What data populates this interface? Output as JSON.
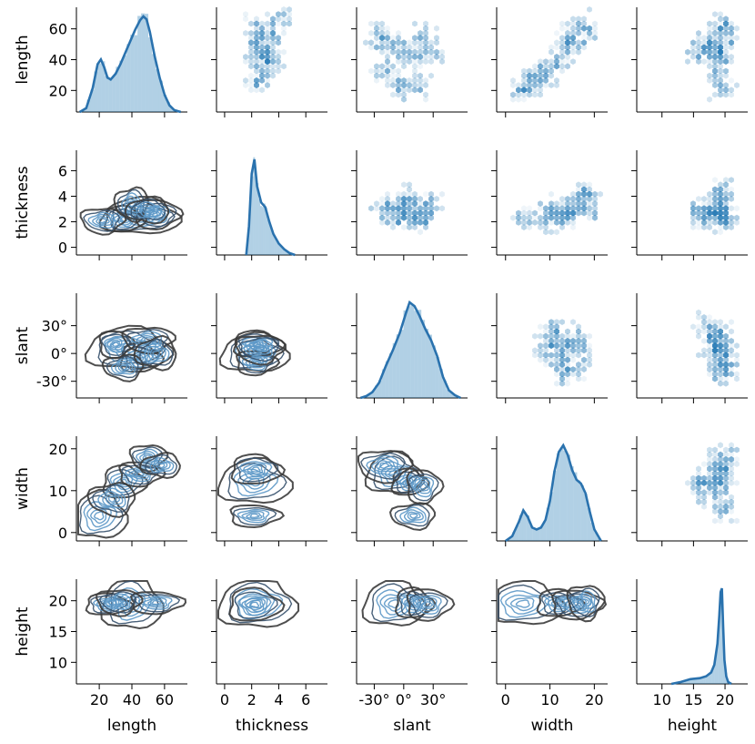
{
  "chart_data": {
    "type": "pairplot",
    "variables": [
      "length",
      "thickness",
      "slant",
      "width",
      "height"
    ],
    "diagonal": "histogram + kde",
    "upper": "hexbin",
    "lower": "kde contours",
    "colors": {
      "fill": "#1f77b4",
      "kde_line": "#2a72ae",
      "contour_dark": "#3b3b3b",
      "axis": "#000000"
    },
    "axes": {
      "length": {
        "range": [
          6,
          74
        ],
        "ticks": [
          20,
          40,
          60
        ],
        "tick_labels": [
          "20",
          "40",
          "60"
        ]
      },
      "thickness": {
        "range": [
          -0.6,
          7.6
        ],
        "ticks": [
          0,
          2,
          4,
          6
        ],
        "tick_labels": [
          "0",
          "2",
          "4",
          "6"
        ]
      },
      "slant": {
        "range": [
          -48,
          65
        ],
        "ticks": [
          -30,
          0,
          30
        ],
        "tick_labels": [
          "-30°",
          "0°",
          "30°"
        ]
      },
      "width": {
        "range": [
          -2,
          23
        ],
        "ticks": [
          0,
          10,
          20
        ],
        "tick_labels": [
          "0",
          "10",
          "20"
        ]
      },
      "height": {
        "range": [
          6,
          23.6
        ],
        "ticks": [
          10,
          15,
          20
        ],
        "tick_labels": [
          "10",
          "15",
          "20"
        ]
      }
    },
    "y_axes": {
      "length": {
        "range": [
          6,
          74
        ],
        "ticks": [
          20,
          40,
          60
        ],
        "tick_labels": [
          "20",
          "40",
          "60"
        ]
      },
      "thickness": {
        "range": [
          -0.6,
          7.6
        ],
        "ticks": [
          0,
          2,
          4,
          6
        ],
        "tick_labels": [
          "0",
          "2",
          "4",
          "6"
        ]
      },
      "slant": {
        "range": [
          -48,
          65
        ],
        "ticks": [
          -30,
          0,
          30
        ],
        "tick_labels": [
          "-30°",
          "0°",
          "30°"
        ]
      },
      "width": {
        "range": [
          -2,
          23
        ],
        "ticks": [
          0,
          10,
          20
        ],
        "tick_labels": [
          "0",
          "10",
          "20"
        ]
      },
      "height": {
        "range": [
          6.5,
          23.5
        ],
        "ticks": [
          10,
          15,
          20
        ],
        "tick_labels": [
          "10",
          "15",
          "20"
        ]
      }
    },
    "diag": {
      "length": {
        "kde_x": [
          8,
          12,
          16,
          19,
          21,
          23,
          25,
          27,
          30,
          33,
          36,
          39,
          42,
          45,
          47,
          49,
          51,
          54,
          57,
          60,
          63,
          66,
          70
        ],
        "kde_d": [
          0.0,
          0.04,
          0.25,
          0.5,
          0.55,
          0.47,
          0.36,
          0.34,
          0.4,
          0.5,
          0.62,
          0.74,
          0.86,
          0.96,
          1.0,
          0.97,
          0.84,
          0.58,
          0.36,
          0.18,
          0.07,
          0.02,
          0.0
        ]
      },
      "thickness": {
        "kde_x": [
          1.6,
          1.8,
          2.0,
          2.2,
          2.4,
          2.7,
          3.0,
          3.3,
          3.6,
          4.0,
          4.4,
          4.8,
          5.2
        ],
        "kde_d": [
          0.0,
          0.3,
          0.85,
          1.0,
          0.72,
          0.55,
          0.5,
          0.35,
          0.22,
          0.12,
          0.06,
          0.02,
          0.0
        ]
      },
      "slant": {
        "kde_x": [
          -44,
          -38,
          -32,
          -25,
          -18,
          -11,
          -4,
          2,
          6,
          11,
          16,
          22,
          28,
          34,
          40,
          46,
          52,
          58
        ],
        "kde_d": [
          0.0,
          0.02,
          0.06,
          0.16,
          0.34,
          0.5,
          0.68,
          0.88,
          1.0,
          0.96,
          0.86,
          0.72,
          0.6,
          0.44,
          0.22,
          0.08,
          0.03,
          0.0
        ]
      },
      "width": {
        "kde_x": [
          0,
          1.5,
          3,
          4,
          5,
          6,
          7,
          8,
          9,
          10,
          11,
          12,
          13,
          14,
          15,
          16,
          17,
          18,
          19,
          20,
          21.5
        ],
        "kde_d": [
          0.0,
          0.05,
          0.2,
          0.32,
          0.25,
          0.14,
          0.12,
          0.14,
          0.22,
          0.42,
          0.72,
          0.93,
          1.0,
          0.9,
          0.74,
          0.64,
          0.6,
          0.5,
          0.3,
          0.12,
          0.0
        ]
      },
      "height": {
        "kde_x": [
          11.5,
          13,
          14.5,
          16,
          17,
          17.8,
          18.3,
          18.8,
          19.1,
          19.3,
          19.5,
          19.7,
          19.9,
          20.2,
          20.5,
          21
        ],
        "kde_d": [
          0.0,
          0.02,
          0.05,
          0.06,
          0.08,
          0.12,
          0.2,
          0.42,
          0.72,
          0.96,
          1.0,
          0.6,
          0.25,
          0.08,
          0.02,
          0.0
        ]
      }
    },
    "hexbin_centers": {
      "thickness_vs_length": [
        [
          2.5,
          50
        ],
        [
          3,
          45
        ],
        [
          2.2,
          60
        ],
        [
          3.5,
          40
        ],
        [
          2.8,
          30
        ],
        [
          2.3,
          22
        ],
        [
          3.2,
          55
        ],
        [
          4,
          65
        ],
        [
          2.6,
          38
        ]
      ],
      "slant_vs_length": [
        [
          -10,
          50
        ],
        [
          0,
          45
        ],
        [
          10,
          40
        ],
        [
          20,
          55
        ],
        [
          -20,
          35
        ],
        [
          -5,
          22
        ],
        [
          15,
          25
        ],
        [
          30,
          45
        ],
        [
          -25,
          55
        ]
      ],
      "width_vs_length": [
        [
          4,
          20
        ],
        [
          8,
          30
        ],
        [
          12,
          40
        ],
        [
          15,
          48
        ],
        [
          18,
          58
        ],
        [
          14,
          52
        ],
        [
          10,
          35
        ],
        [
          6,
          25
        ],
        [
          17,
          62
        ]
      ],
      "height_vs_length": [
        [
          19.5,
          40
        ],
        [
          19.5,
          55
        ],
        [
          19,
          30
        ],
        [
          18,
          45
        ],
        [
          17,
          50
        ],
        [
          19.8,
          22
        ],
        [
          19.6,
          62
        ],
        [
          16,
          42
        ],
        [
          19.2,
          48
        ]
      ],
      "slant_vs_thickness": [
        [
          -10,
          2.2
        ],
        [
          0,
          2.5
        ],
        [
          10,
          3
        ],
        [
          20,
          2.4
        ],
        [
          -20,
          3.2
        ],
        [
          5,
          4
        ],
        [
          -5,
          2.8
        ],
        [
          25,
          3.5
        ],
        [
          15,
          2.2
        ]
      ],
      "width_vs_thickness": [
        [
          4,
          2.2
        ],
        [
          10,
          3
        ],
        [
          13,
          2.5
        ],
        [
          16,
          3.5
        ],
        [
          18,
          4
        ],
        [
          12,
          2.2
        ],
        [
          8,
          2.4
        ],
        [
          15,
          2.8
        ],
        [
          19,
          3
        ]
      ],
      "height_vs_thickness": [
        [
          19.5,
          2.3
        ],
        [
          19.5,
          3
        ],
        [
          19.2,
          3.8
        ],
        [
          18,
          2.6
        ],
        [
          17,
          2.4
        ],
        [
          19.8,
          2.2
        ],
        [
          19.4,
          4.5
        ],
        [
          16,
          2.8
        ],
        [
          19.6,
          2.6
        ]
      ],
      "width_vs_slant": [
        [
          12,
          -5
        ],
        [
          14,
          5
        ],
        [
          15,
          15
        ],
        [
          10,
          10
        ],
        [
          8,
          0
        ],
        [
          16,
          -15
        ],
        [
          13,
          -20
        ],
        [
          11,
          25
        ],
        [
          17,
          5
        ]
      ],
      "height_vs_slant": [
        [
          19.5,
          0
        ],
        [
          19.5,
          10
        ],
        [
          19.8,
          -10
        ],
        [
          19.2,
          20
        ],
        [
          18,
          15
        ],
        [
          17,
          30
        ],
        [
          19.6,
          -20
        ],
        [
          19,
          5
        ],
        [
          18.5,
          -5
        ]
      ],
      "height_vs_width": [
        [
          19.5,
          12
        ],
        [
          19.5,
          16
        ],
        [
          19,
          8
        ],
        [
          18,
          14
        ],
        [
          17,
          10
        ],
        [
          19.8,
          5
        ],
        [
          19.6,
          18
        ],
        [
          16,
          12
        ],
        [
          19.3,
          14
        ]
      ]
    },
    "kde_peaks": {
      "length_x_thickness": [
        [
          45,
          2.4
        ],
        [
          35,
          2.2
        ],
        [
          55,
          2.6
        ],
        [
          22,
          2.1
        ],
        [
          40,
          3.4
        ],
        [
          50,
          2.9
        ]
      ],
      "length_x_slant": [
        [
          38,
          5
        ],
        [
          45,
          -5
        ],
        [
          30,
          10
        ],
        [
          50,
          15
        ],
        [
          35,
          -15
        ],
        [
          55,
          0
        ]
      ],
      "length_x_width": [
        [
          20,
          4
        ],
        [
          35,
          12
        ],
        [
          45,
          14
        ],
        [
          50,
          18
        ],
        [
          28,
          8
        ],
        [
          58,
          16
        ]
      ],
      "length_x_height": [
        [
          40,
          19.5
        ],
        [
          25,
          19.4
        ],
        [
          55,
          19.7
        ],
        [
          32,
          19.8
        ]
      ],
      "thickness_x_slant": [
        [
          2.2,
          0
        ],
        [
          2.4,
          10
        ],
        [
          2.3,
          -10
        ],
        [
          2.6,
          5
        ]
      ],
      "thickness_x_width": [
        [
          2.2,
          12
        ],
        [
          2.3,
          15
        ],
        [
          2.2,
          4
        ]
      ],
      "thickness_x_height": [
        [
          2.4,
          19.5
        ],
        [
          2.2,
          19.3
        ]
      ],
      "slant_x_width": [
        [
          -10,
          14
        ],
        [
          5,
          12
        ],
        [
          20,
          11
        ],
        [
          -20,
          16
        ],
        [
          10,
          4
        ]
      ],
      "slant_x_height": [
        [
          -10,
          19.5
        ],
        [
          10,
          19.6
        ],
        [
          25,
          19.4
        ]
      ],
      "width_x_height": [
        [
          4,
          19.5
        ],
        [
          12,
          19.6
        ],
        [
          16,
          19.4
        ],
        [
          18,
          19.8
        ]
      ]
    }
  }
}
